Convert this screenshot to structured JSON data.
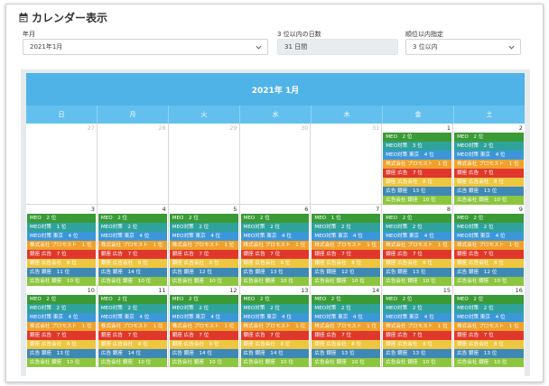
{
  "page": {
    "title": "カレンダー表示",
    "title_icon": "calendar-icon"
  },
  "filters": {
    "month": {
      "label": "年月",
      "value": "2021年1月"
    },
    "days": {
      "label": "3 位以内の日数",
      "value": "31 日間"
    },
    "rank": {
      "label": "順位以内指定",
      "value": "3 位以内"
    }
  },
  "calendar": {
    "title": "2021年 1月",
    "weekdays": [
      "日",
      "月",
      "火",
      "水",
      "木",
      "金",
      "土"
    ],
    "colors": {
      "green": "#3a9a36",
      "teal": "#2fa39b",
      "blue": "#3c97d9",
      "orange": "#f0a12b",
      "red": "#e0372c",
      "yellow": "#eec640",
      "steel": "#3e88b6",
      "lime": "#8cc63e"
    },
    "weeks": [
      {
        "days": [
          {
            "num": "27",
            "other": true,
            "events": []
          },
          {
            "num": "28",
            "other": true,
            "events": []
          },
          {
            "num": "29",
            "other": true,
            "events": []
          },
          {
            "num": "30",
            "other": true,
            "events": []
          },
          {
            "num": "31",
            "other": true,
            "events": []
          },
          {
            "num": "1",
            "other": false,
            "events": [
              {
                "text": "MEO　2 位",
                "color": "green"
              },
              {
                "text": "MEO対策　3 位",
                "color": "teal"
              },
              {
                "text": "MEO対策 東京　4 位",
                "color": "blue"
              },
              {
                "text": "株式会社 プロモスト　1 位",
                "color": "orange"
              },
              {
                "text": "銀座 広告　7 位",
                "color": "red"
              },
              {
                "text": "銀座 広告会社　8 位",
                "color": "yellow"
              },
              {
                "text": "広告 銀座　13 位",
                "color": "steel"
              },
              {
                "text": "広告会社 銀座　10 位",
                "color": "lime"
              }
            ]
          },
          {
            "num": "2",
            "other": false,
            "events": [
              {
                "text": "MEO　2 位",
                "color": "green"
              },
              {
                "text": "MEO対策　2 位",
                "color": "teal"
              },
              {
                "text": "MEO対策 東京　4 位",
                "color": "blue"
              },
              {
                "text": "株式会社 プロモスト　1 位",
                "color": "orange"
              },
              {
                "text": "銀座 広告　7 位",
                "color": "red"
              },
              {
                "text": "銀座 広告会社　8 位",
                "color": "yellow"
              },
              {
                "text": "広告 銀座　13 位",
                "color": "steel"
              },
              {
                "text": "広告会社 銀座　10 位",
                "color": "lime"
              }
            ]
          }
        ]
      },
      {
        "days": [
          {
            "num": "3",
            "other": false,
            "events": [
              {
                "text": "MEO　2 位",
                "color": "green"
              },
              {
                "text": "MEO対策　1 位",
                "color": "teal"
              },
              {
                "text": "MEO対策 東京　4 位",
                "color": "blue"
              },
              {
                "text": "株式会社 プロモスト　1 位",
                "color": "orange"
              },
              {
                "text": "銀座 広告　7 位",
                "color": "red"
              },
              {
                "text": "銀座 広告会社　8 位",
                "color": "yellow"
              },
              {
                "text": "広告 銀座　11 位",
                "color": "steel"
              },
              {
                "text": "広告会社 銀座　10 位",
                "color": "lime"
              }
            ]
          },
          {
            "num": "4",
            "other": false,
            "events": [
              {
                "text": "MEO　2 位",
                "color": "green"
              },
              {
                "text": "MEO対策　2 位",
                "color": "teal"
              },
              {
                "text": "MEO対策 東京　4 位",
                "color": "blue"
              },
              {
                "text": "株式会社 プロモスト　1 位",
                "color": "orange"
              },
              {
                "text": "銀座 広告　7 位",
                "color": "red"
              },
              {
                "text": "銀座 広告会社　8 位",
                "color": "yellow"
              },
              {
                "text": "広告 銀座　14 位",
                "color": "steel"
              },
              {
                "text": "広告会社 銀座　10 位",
                "color": "lime"
              }
            ]
          },
          {
            "num": "5",
            "other": false,
            "events": [
              {
                "text": "MEO　2 位",
                "color": "green"
              },
              {
                "text": "MEO対策　2 位",
                "color": "teal"
              },
              {
                "text": "MEO対策 東京　4 位",
                "color": "blue"
              },
              {
                "text": "株式会社 プロモスト　1 位",
                "color": "orange"
              },
              {
                "text": "銀座 広告　7 位",
                "color": "red"
              },
              {
                "text": "銀座 広告会社　8 位",
                "color": "yellow"
              },
              {
                "text": "広告 銀座　12 位",
                "color": "steel"
              },
              {
                "text": "広告会社 銀座　10 位",
                "color": "lime"
              }
            ]
          },
          {
            "num": "6",
            "other": false,
            "events": [
              {
                "text": "MEO　2 位",
                "color": "green"
              },
              {
                "text": "MEO対策　2 位",
                "color": "teal"
              },
              {
                "text": "MEO対策 東京　4 位",
                "color": "blue"
              },
              {
                "text": "株式会社 プロモスト　1 位",
                "color": "orange"
              },
              {
                "text": "銀座 広告　7 位",
                "color": "red"
              },
              {
                "text": "銀座 広告会社　8 位",
                "color": "yellow"
              },
              {
                "text": "広告 銀座　13 位",
                "color": "steel"
              },
              {
                "text": "広告会社 銀座　10 位",
                "color": "lime"
              }
            ]
          },
          {
            "num": "7",
            "other": false,
            "events": [
              {
                "text": "MEO　1 位",
                "color": "green"
              },
              {
                "text": "MEO対策　2 位",
                "color": "teal"
              },
              {
                "text": "MEO対策 東京　4 位",
                "color": "blue"
              },
              {
                "text": "株式会社 プロモスト　1 位",
                "color": "orange"
              },
              {
                "text": "銀座 広告　7 位",
                "color": "red"
              },
              {
                "text": "銀座 広告会社　8 位",
                "color": "yellow"
              },
              {
                "text": "広告 銀座　12 位",
                "color": "steel"
              },
              {
                "text": "広告会社 銀座　10 位",
                "color": "lime"
              }
            ]
          },
          {
            "num": "8",
            "other": false,
            "events": [
              {
                "text": "MEO　2 位",
                "color": "green"
              },
              {
                "text": "MEO対策　2 位",
                "color": "teal"
              },
              {
                "text": "MEO対策 東京　4 位",
                "color": "blue"
              },
              {
                "text": "株式会社 プロモスト　1 位",
                "color": "orange"
              },
              {
                "text": "銀座 広告　7 位",
                "color": "red"
              },
              {
                "text": "銀座 広告会社　8 位",
                "color": "yellow"
              },
              {
                "text": "広告 銀座　13 位",
                "color": "steel"
              },
              {
                "text": "広告会社 銀座　10 位",
                "color": "lime"
              }
            ]
          },
          {
            "num": "9",
            "other": false,
            "events": [
              {
                "text": "MEO　2 位",
                "color": "green"
              },
              {
                "text": "MEO対策　2 位",
                "color": "teal"
              },
              {
                "text": "MEO対策 東京　4 位",
                "color": "blue"
              },
              {
                "text": "株式会社 プロモスト　1 位",
                "color": "orange"
              },
              {
                "text": "銀座 広告　7 位",
                "color": "red"
              },
              {
                "text": "銀座 広告会社　8 位",
                "color": "yellow"
              },
              {
                "text": "広告 銀座　12 位",
                "color": "steel"
              },
              {
                "text": "広告会社 銀座　10 位",
                "color": "lime"
              }
            ]
          }
        ]
      },
      {
        "days": [
          {
            "num": "10",
            "other": false,
            "events": [
              {
                "text": "MEO　2 位",
                "color": "green"
              },
              {
                "text": "MEO対策　2 位",
                "color": "teal"
              },
              {
                "text": "MEO対策 東京　4 位",
                "color": "blue"
              },
              {
                "text": "株式会社 プロモスト　1 位",
                "color": "orange"
              },
              {
                "text": "銀座 広告　7 位",
                "color": "red"
              },
              {
                "text": "銀座 広告会社　8 位",
                "color": "yellow"
              },
              {
                "text": "広告 銀座　13 位",
                "color": "steel"
              },
              {
                "text": "広告会社 銀座　10 位",
                "color": "lime"
              }
            ]
          },
          {
            "num": "11",
            "other": false,
            "events": [
              {
                "text": "MEO　2 位",
                "color": "green"
              },
              {
                "text": "MEO対策　2 位",
                "color": "teal"
              },
              {
                "text": "MEO対策 東京　4 位",
                "color": "blue"
              },
              {
                "text": "株式会社 プロモスト　1 位",
                "color": "orange"
              },
              {
                "text": "銀座 広告　7 位",
                "color": "red"
              },
              {
                "text": "銀座 広告会社　8 位",
                "color": "yellow"
              },
              {
                "text": "広告 銀座　14 位",
                "color": "steel"
              },
              {
                "text": "広告会社 銀座　10 位",
                "color": "lime"
              }
            ]
          },
          {
            "num": "12",
            "other": false,
            "events": [
              {
                "text": "MEO　2 位",
                "color": "green"
              },
              {
                "text": "MEO対策　2 位",
                "color": "teal"
              },
              {
                "text": "MEO対策 東京　4 位",
                "color": "blue"
              },
              {
                "text": "株式会社 プロモスト　1 位",
                "color": "orange"
              },
              {
                "text": "銀座 広告　7 位",
                "color": "red"
              },
              {
                "text": "銀座 広告会社　8 位",
                "color": "yellow"
              },
              {
                "text": "広告 銀座　14 位",
                "color": "steel"
              },
              {
                "text": "広告会社 銀座　10 位",
                "color": "lime"
              }
            ]
          },
          {
            "num": "13",
            "other": false,
            "events": [
              {
                "text": "MEO　2 位",
                "color": "green"
              },
              {
                "text": "MEO対策　2 位",
                "color": "teal"
              },
              {
                "text": "MEO対策 東京　4 位",
                "color": "blue"
              },
              {
                "text": "株式会社 プロモスト　1 位",
                "color": "orange"
              },
              {
                "text": "銀座 広告　7 位",
                "color": "red"
              },
              {
                "text": "銀座 広告会社　8 位",
                "color": "yellow"
              },
              {
                "text": "広告 銀座　14 位",
                "color": "steel"
              },
              {
                "text": "広告会社 銀座　10 位",
                "color": "lime"
              }
            ]
          },
          {
            "num": "14",
            "other": false,
            "events": [
              {
                "text": "MEO　2 位",
                "color": "green"
              },
              {
                "text": "MEO対策　2 位",
                "color": "teal"
              },
              {
                "text": "MEO対策 東京　4 位",
                "color": "blue"
              },
              {
                "text": "株式会社 プロモスト　1 位",
                "color": "orange"
              },
              {
                "text": "銀座 広告　7 位",
                "color": "red"
              },
              {
                "text": "銀座 広告会社　8 位",
                "color": "yellow"
              },
              {
                "text": "広告 銀座　13 位",
                "color": "steel"
              },
              {
                "text": "広告会社 銀座　10 位",
                "color": "lime"
              }
            ]
          },
          {
            "num": "15",
            "other": false,
            "events": [
              {
                "text": "MEO　2 位",
                "color": "green"
              },
              {
                "text": "MEO対策　2 位",
                "color": "teal"
              },
              {
                "text": "MEO対策 東京　4 位",
                "color": "blue"
              },
              {
                "text": "株式会社 プロモスト　1 位",
                "color": "orange"
              },
              {
                "text": "銀座 広告　7 位",
                "color": "red"
              },
              {
                "text": "銀座 広告会社　8 位",
                "color": "yellow"
              },
              {
                "text": "広告 銀座　13 位",
                "color": "steel"
              },
              {
                "text": "広告会社 銀座　10 位",
                "color": "lime"
              }
            ]
          },
          {
            "num": "16",
            "other": false,
            "events": [
              {
                "text": "MEO　2 位",
                "color": "green"
              },
              {
                "text": "MEO対策　2 位",
                "color": "teal"
              },
              {
                "text": "MEO対策 東京　4 位",
                "color": "blue"
              },
              {
                "text": "株式会社 プロモスト　1 位",
                "color": "orange"
              },
              {
                "text": "銀座 広告　7 位",
                "color": "red"
              },
              {
                "text": "銀座 広告会社　8 位",
                "color": "yellow"
              },
              {
                "text": "広告 銀座　13 位",
                "color": "steel"
              },
              {
                "text": "広告会社 銀座　10 位",
                "color": "lime"
              }
            ]
          }
        ]
      }
    ]
  }
}
